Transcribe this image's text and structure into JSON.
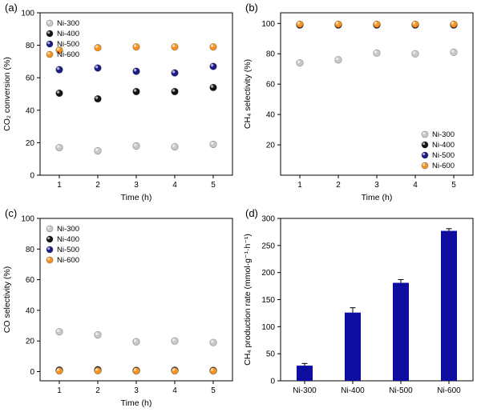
{
  "figure": {
    "background": "#ffffff",
    "frame_color": "#000000"
  },
  "chart_data": [
    {
      "tag": "(a)",
      "type": "scatter",
      "xlabel": "Time (h)",
      "ylabel": "CO₂ conversion (%)",
      "x": [
        1,
        2,
        3,
        4,
        5
      ],
      "xlim": [
        0.5,
        5.5
      ],
      "ylim": [
        0,
        100
      ],
      "yticks": [
        0,
        20,
        40,
        60,
        80,
        100
      ],
      "legend_position": "top-left",
      "series": [
        {
          "name": "Ni-300",
          "color": "#c9c9c9",
          "values": [
            17,
            15,
            18,
            17.5,
            19
          ]
        },
        {
          "name": "Ni-400",
          "color": "#141414",
          "values": [
            50.5,
            47,
            51.5,
            51.5,
            54
          ]
        },
        {
          "name": "Ni-500",
          "color": "#1c1c85",
          "values": [
            65,
            66,
            64,
            63,
            67
          ]
        },
        {
          "name": "Ni-600",
          "color": "#f79420",
          "values": [
            77,
            78.5,
            79,
            79,
            79
          ]
        }
      ]
    },
    {
      "tag": "(b)",
      "type": "scatter",
      "xlabel": "Time (h)",
      "ylabel": "CH₄ selectivity (%)",
      "x": [
        1,
        2,
        3,
        4,
        5
      ],
      "xlim": [
        0.5,
        5.5
      ],
      "ylim": [
        0,
        107
      ],
      "yticks": [
        20,
        40,
        60,
        80,
        100
      ],
      "legend_position": "bottom-right",
      "series": [
        {
          "name": "Ni-300",
          "color": "#c9c9c9",
          "values": [
            74,
            76,
            80.5,
            80,
            81
          ]
        },
        {
          "name": "Ni-400",
          "color": "#141414",
          "values": [
            99,
            99,
            99,
            99,
            99
          ]
        },
        {
          "name": "Ni-500",
          "color": "#1c1c85",
          "values": [
            99.2,
            99.2,
            99.2,
            99.2,
            99.2
          ]
        },
        {
          "name": "Ni-600",
          "color": "#f79420",
          "values": [
            99.5,
            99.5,
            99.5,
            99.5,
            99.5
          ]
        }
      ]
    },
    {
      "tag": "(c)",
      "type": "scatter",
      "xlabel": "Time (h)",
      "ylabel": "CO selectivity (%)",
      "x": [
        1,
        2,
        3,
        4,
        5
      ],
      "xlim": [
        0.5,
        5.5
      ],
      "ylim": [
        -6,
        100
      ],
      "yticks": [
        0,
        20,
        40,
        60,
        80,
        100
      ],
      "legend_position": "top-left",
      "series": [
        {
          "name": "Ni-300",
          "color": "#c9c9c9",
          "values": [
            26,
            24,
            19.5,
            20,
            19
          ]
        },
        {
          "name": "Ni-400",
          "color": "#141414",
          "values": [
            1,
            1.2,
            0.8,
            0.8,
            0.8
          ]
        },
        {
          "name": "Ni-500",
          "color": "#1c1c85",
          "values": [
            0.8,
            0.8,
            0.6,
            0.9,
            0.6
          ]
        },
        {
          "name": "Ni-600",
          "color": "#f79420",
          "values": [
            0.5,
            0.6,
            0.5,
            0.5,
            0.5
          ]
        }
      ]
    },
    {
      "tag": "(d)",
      "type": "bar",
      "ylabel": "CH₄ production rate (mmol·g⁻¹·h⁻¹)",
      "categories": [
        "Ni-300",
        "Ni-400",
        "Ni-500",
        "Ni-600"
      ],
      "values": [
        28,
        126,
        181,
        277
      ],
      "errors": [
        4,
        9,
        6,
        4
      ],
      "bar_color": "#0d0da0",
      "ylim": [
        0,
        300
      ],
      "yticks": [
        0,
        50,
        100,
        150,
        200,
        250,
        300
      ],
      "legend_position": "none"
    }
  ]
}
